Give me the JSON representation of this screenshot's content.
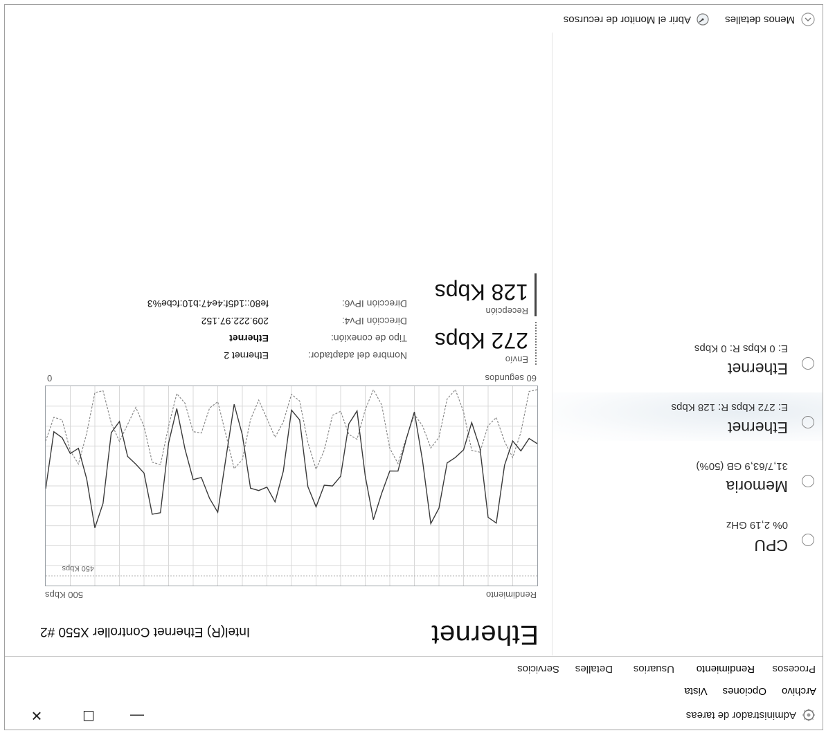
{
  "window": {
    "title": "Administrador de tareas",
    "minimize_glyph": "—",
    "maximize_glyph": "☐",
    "close_glyph": "✕"
  },
  "menu": [
    "Archivo",
    "Opciones",
    "Vista"
  ],
  "tabs": [
    "Procesos",
    "Rendimiento",
    "Usuarios",
    "Detalles",
    "Servicios"
  ],
  "sidebar": {
    "items": [
      {
        "name": "CPU",
        "sub": "0% 2,19 GHz",
        "selected": false
      },
      {
        "name": "Memoria",
        "sub": "31,7/63,9 GB (50%)",
        "selected": false
      },
      {
        "name": "Ethernet",
        "sub": "E: 272 Kbps R: 128 Kbps",
        "selected": true
      },
      {
        "name": "Ethernet",
        "sub": "E: 0 Kbps R: 0 Kbps",
        "selected": false
      }
    ]
  },
  "main": {
    "title": "Ethernet",
    "adapter": "Intel(R) Ethernet Controller X550 #2",
    "graph": {
      "top_left_label": "Rendimiento",
      "top_right_label": "500 Kbps",
      "mid_label": "450 Kbps",
      "bottom_left_label": "60 segundos",
      "bottom_right_label": "0"
    },
    "send_label": "Envío",
    "send_value": "272 Kbps",
    "recv_label": "Recepción",
    "recv_value": "128 Kbps",
    "details": [
      {
        "label": "Nombre del adaptador:",
        "value": "Ethernet 2"
      },
      {
        "label": "Tipo de conexión:",
        "value": "Ethernet"
      },
      {
        "label": "Dirección IPv4:",
        "value": "209.222.97.152"
      },
      {
        "label": "Dirección IPv6:",
        "value": "fe80::1d5f:4e47:b10:fcbe%3"
      }
    ]
  },
  "footer": {
    "less_details": "Menos detalles",
    "resource_monitor": "Abrir el Monitor de recursos"
  },
  "colors": {
    "send_line": "#3a3a3a",
    "recv_line": "#8a8a8a",
    "grid": "#c8c8c8"
  }
}
